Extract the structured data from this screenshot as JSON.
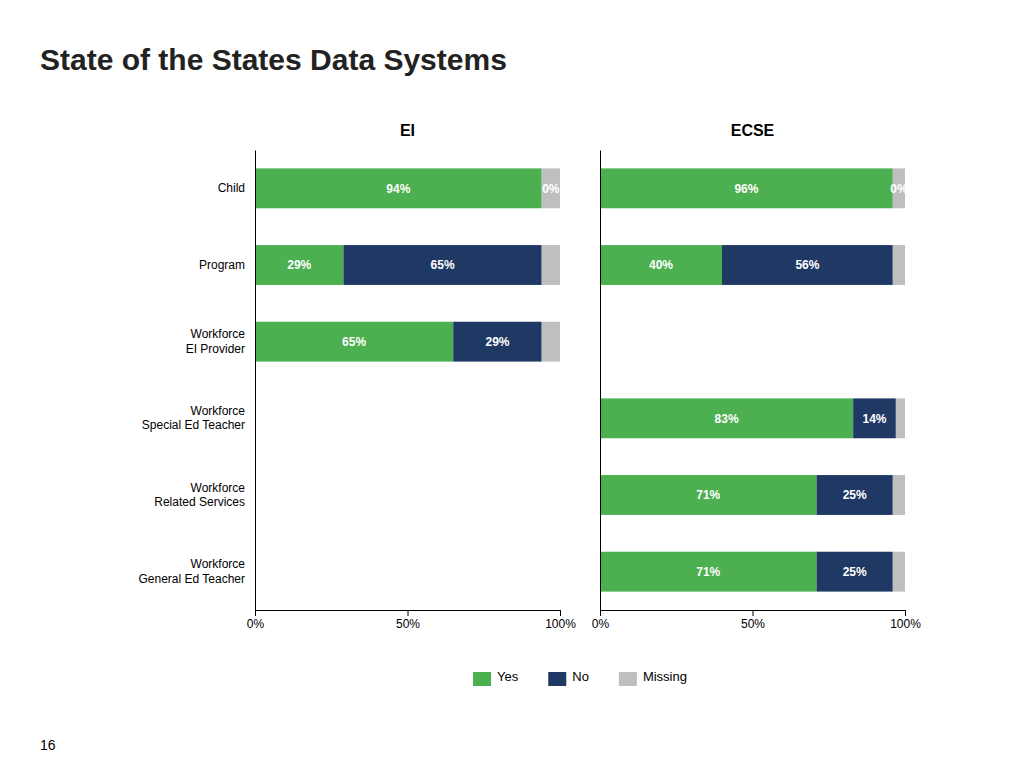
{
  "title": "State of the States Data Systems",
  "annotations": [
    "16"
  ],
  "chart_data": [
    {
      "type": "bar",
      "title": "EI",
      "orientation": "horizontal",
      "stacked": true,
      "data_labels": true,
      "grid": false,
      "legend": "bottom",
      "categories": [
        "Child",
        "Program",
        "Workforce\nEI Provider",
        "Workforce\nSpecial Ed Teacher",
        "Workforce\nRelated Services",
        "Workforce\nGeneral Ed Teacher"
      ],
      "xlim": [
        0,
        100
      ],
      "xticks": [
        {
          "value": 0,
          "label": "0%"
        },
        {
          "value": 50,
          "label": "50%"
        },
        {
          "value": 100,
          "label": "100%"
        }
      ],
      "series": [
        {
          "name": "Yes",
          "color": "#4CAF50",
          "values": [
            94,
            29,
            65,
            null,
            null,
            null
          ],
          "value_labels": [
            "94%",
            "29%",
            "65%",
            null,
            null,
            null
          ]
        },
        {
          "name": "No",
          "color": "#1F3864",
          "values": [
            0,
            65,
            29,
            null,
            null,
            null
          ],
          "value_labels": [
            "0%",
            "65%",
            "29%",
            null,
            null,
            null
          ]
        },
        {
          "name": "Missing",
          "color": "#BFBFBF",
          "values": [
            6,
            6,
            6,
            null,
            null,
            null
          ]
        }
      ]
    },
    {
      "type": "bar",
      "title": "ECSE",
      "orientation": "horizontal",
      "stacked": true,
      "data_labels": true,
      "grid": false,
      "tick_labels": "x",
      "categories": [
        "Child",
        "Program",
        "Workforce\nEI Provider",
        "Workforce\nSpecial Ed Teacher",
        "Workforce\nRelated Services",
        "Workforce\nGeneral Ed Teacher"
      ],
      "xlim": [
        0,
        100
      ],
      "xticks": [
        {
          "value": 0,
          "label": "0%"
        },
        {
          "value": 50,
          "label": "50%"
        },
        {
          "value": 100,
          "label": "100%"
        }
      ],
      "series": [
        {
          "name": "Yes",
          "color": "#4CAF50",
          "values": [
            96,
            40,
            null,
            83,
            71,
            71
          ],
          "value_labels": [
            "96%",
            "40%",
            null,
            "83%",
            "71%",
            "71%"
          ]
        },
        {
          "name": "No",
          "color": "#1F3864",
          "values": [
            0,
            56,
            null,
            14,
            25,
            25
          ],
          "value_labels": [
            "0%",
            "56%",
            null,
            "14%",
            "25%",
            "25%"
          ]
        },
        {
          "name": "Missing",
          "color": "#BFBFBF",
          "values": [
            4,
            4,
            null,
            3,
            4,
            4
          ]
        }
      ]
    }
  ]
}
